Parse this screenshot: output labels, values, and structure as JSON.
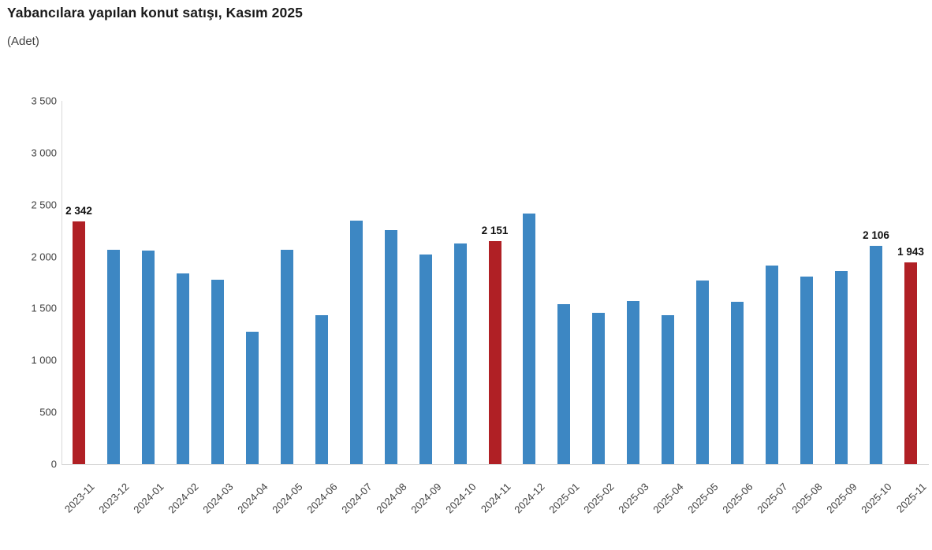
{
  "header": {
    "title": "Yabancılara yapılan konut satışı, Kasım 2025",
    "subtitle": "(Adet)"
  },
  "chart_data": {
    "type": "bar",
    "title": "Yabancılara yapılan konut satışı, Kasım 2025",
    "xlabel": "",
    "ylabel": "(Adet)",
    "ylim": [
      0,
      3500
    ],
    "ytick_interval": 500,
    "ytick_labels": [
      "3 500",
      "3 000",
      "2 500",
      "2 000",
      "1 500",
      "1 000",
      "500",
      "0"
    ],
    "grid": false,
    "legend": false,
    "categories": [
      "2023-11",
      "2023-12",
      "2024-01",
      "2024-02",
      "2024-03",
      "2024-04",
      "2024-05",
      "2024-06",
      "2024-07",
      "2024-08",
      "2024-09",
      "2024-10",
      "2024-11",
      "2024-12",
      "2025-01",
      "2025-02",
      "2025-03",
      "2025-04",
      "2025-05",
      "2025-06",
      "2025-07",
      "2025-08",
      "2025-09",
      "2025-10",
      "2025-11"
    ],
    "values": [
      2342,
      2063,
      2061,
      1841,
      1776,
      1272,
      2064,
      1437,
      2346,
      2255,
      2022,
      2124,
      2151,
      2417,
      1540,
      1457,
      1571,
      1434,
      1768,
      1563,
      1911,
      1806,
      1860,
      2106,
      1943
    ],
    "highlighted_categories": [
      "2023-11",
      "2024-11",
      "2025-11"
    ],
    "data_labels": {
      "2023-11": "2 342",
      "2024-11": "2 151",
      "2025-10": "2 106",
      "2025-11": "1 943"
    },
    "colors": {
      "default": "#3D87C3",
      "highlight": "#B02025",
      "axis": "#d9d9d9",
      "tick_text": "#404040",
      "label_text": "#111111"
    }
  }
}
